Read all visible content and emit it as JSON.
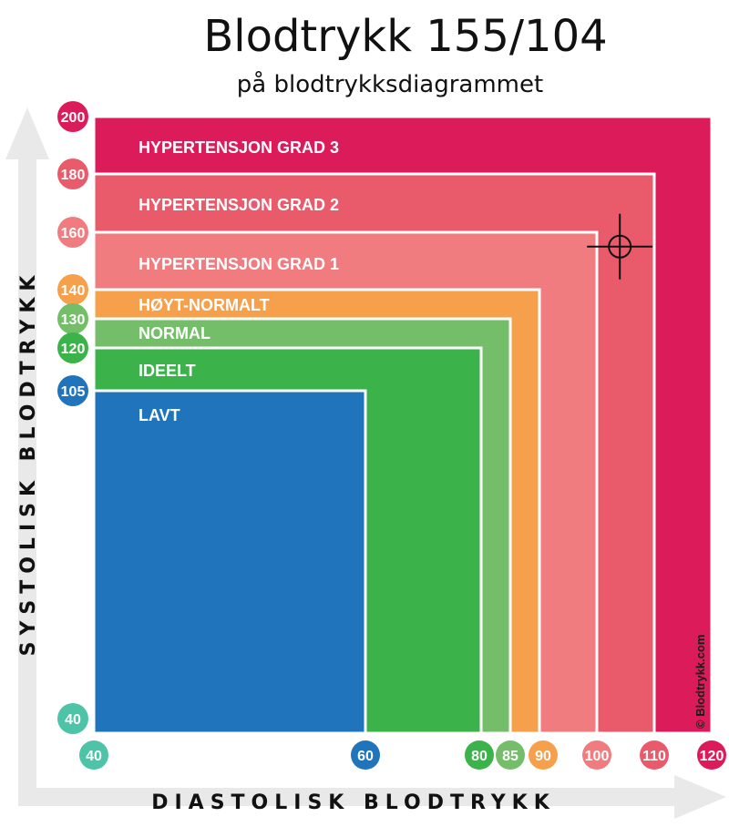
{
  "title": "Blodtrykk 155/104",
  "subtitle": "på blodtrykksdiagrammet",
  "credit": "© Blodtrykk.com",
  "colors": {
    "lavt": "#1f74bb",
    "ideelt": "#3bb34a",
    "normal": "#74be69",
    "hoyt_normalt": "#f6a04b",
    "hypertensjon_grad_1": "#f07c80",
    "hypertensjon_grad_2": "#e95a6a",
    "hypertensjon_grad_3": "#dc1b5a",
    "axis_arrow": "#e9e9ea"
  },
  "chart_data": {
    "type": "area",
    "title": "Blodtrykk 155/104",
    "subtitle": "på blodtrykksdiagrammet",
    "xlabel": "DIASTOLISK BLODTRYKK",
    "ylabel": "SYSTOLISK BLODTRYKK",
    "x_ticks": [
      40,
      60,
      80,
      85,
      90,
      100,
      110,
      120
    ],
    "y_ticks": [
      200,
      180,
      160,
      140,
      130,
      120,
      105,
      40
    ],
    "zones": [
      {
        "name": "HYPERTENSJON GRAD 3",
        "x_max": 120,
        "y_max": 200,
        "color_key": "hypertensjon_grad_3"
      },
      {
        "name": "HYPERTENSJON GRAD 2",
        "x_max": 110,
        "y_max": 180,
        "color_key": "hypertensjon_grad_2"
      },
      {
        "name": "HYPERTENSJON GRAD 1",
        "x_max": 100,
        "y_max": 160,
        "color_key": "hypertensjon_grad_1"
      },
      {
        "name": "HØYT-NORMALT",
        "x_max": 90,
        "y_max": 140,
        "color_key": "hoyt_normalt"
      },
      {
        "name": "NORMAL",
        "x_max": 85,
        "y_max": 130,
        "color_key": "normal"
      },
      {
        "name": "IDEELT",
        "x_max": 80,
        "y_max": 120,
        "color_key": "ideelt"
      },
      {
        "name": "LAVT",
        "x_max": 60,
        "y_max": 105,
        "color_key": "lavt"
      }
    ],
    "marker": {
      "x": 104,
      "y": 155
    }
  }
}
